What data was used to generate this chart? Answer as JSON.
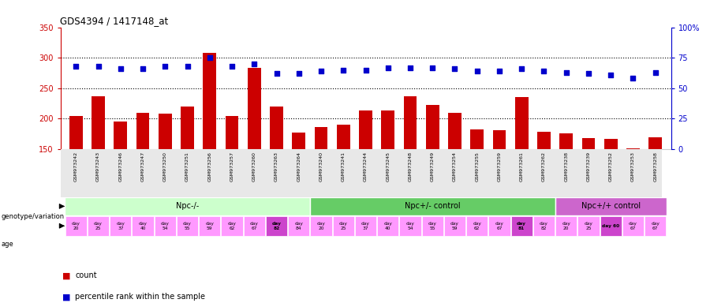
{
  "title": "GDS4394 / 1417148_at",
  "samples": [
    "GSM973242",
    "GSM973243",
    "GSM973246",
    "GSM973247",
    "GSM973250",
    "GSM973251",
    "GSM973256",
    "GSM973257",
    "GSM973260",
    "GSM973263",
    "GSM973264",
    "GSM973240",
    "GSM973241",
    "GSM973244",
    "GSM973245",
    "GSM973248",
    "GSM973249",
    "GSM973254",
    "GSM973255",
    "GSM973259",
    "GSM973261",
    "GSM973262",
    "GSM973238",
    "GSM973239",
    "GSM973252",
    "GSM973253",
    "GSM973258"
  ],
  "counts": [
    205,
    237,
    196,
    210,
    208,
    220,
    308,
    205,
    284,
    220,
    177,
    186,
    190,
    213,
    213,
    237,
    222,
    210,
    183,
    181,
    235,
    179,
    176,
    168,
    167,
    152,
    170
  ],
  "percentile_ranks": [
    68,
    68,
    66,
    66,
    68,
    68,
    75,
    68,
    70,
    62,
    62,
    64,
    65,
    65,
    67,
    67,
    67,
    66,
    64,
    64,
    66,
    64,
    63,
    62,
    61,
    58,
    63
  ],
  "ylim_left": [
    150,
    350
  ],
  "ylim_right": [
    0,
    100
  ],
  "yticks_left": [
    150,
    200,
    250,
    300,
    350
  ],
  "yticks_right": [
    0,
    25,
    50,
    75,
    100
  ],
  "bar_color": "#cc0000",
  "dot_color": "#0000cc",
  "groups": [
    {
      "label": "Npc-/-",
      "start": 0,
      "end": 11,
      "color": "#ccffcc"
    },
    {
      "label": "Npc+/- control",
      "start": 11,
      "end": 22,
      "color": "#66cc66"
    },
    {
      "label": "Npc+/+ control",
      "start": 22,
      "end": 27,
      "color": "#cc66cc"
    }
  ],
  "ages_data": [
    [
      "day\n20",
      false
    ],
    [
      "day\n25",
      false
    ],
    [
      "day\n37",
      false
    ],
    [
      "day\n40",
      false
    ],
    [
      "day\n54",
      false
    ],
    [
      "day\n55",
      false
    ],
    [
      "day\n59",
      false
    ],
    [
      "day\n62",
      false
    ],
    [
      "day\n67",
      false
    ],
    [
      "day\n82",
      true
    ],
    [
      "day\n84",
      false
    ],
    [
      "day\n20",
      false
    ],
    [
      "day\n25",
      false
    ],
    [
      "day\n37",
      false
    ],
    [
      "day\n40",
      false
    ],
    [
      "day\n54",
      false
    ],
    [
      "day\n55",
      false
    ],
    [
      "day\n59",
      false
    ],
    [
      "day\n62",
      false
    ],
    [
      "day\n67",
      false
    ],
    [
      "day\n81",
      true
    ],
    [
      "day\n82",
      false
    ],
    [
      "day\n20",
      false
    ],
    [
      "day\n25",
      false
    ],
    [
      "day 60",
      true
    ],
    [
      "day\n67",
      false
    ],
    [
      "day\n67",
      false
    ]
  ],
  "bg_color": "#ffffff",
  "left_axis_color": "#cc0000",
  "right_axis_color": "#0000cc",
  "age_normal_color": "#ff99ff",
  "age_highlight_color": "#cc44cc",
  "geno_border_color": "#ffffff"
}
